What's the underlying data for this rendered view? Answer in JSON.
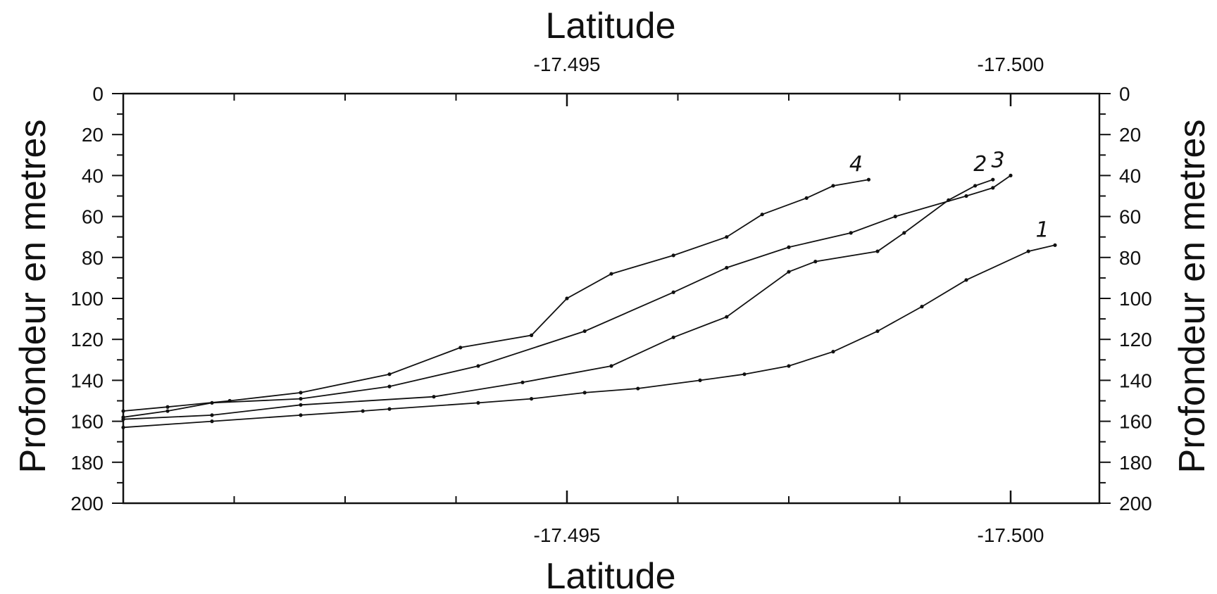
{
  "chart_data": {
    "type": "line",
    "xlabel_top": "Latitude",
    "xlabel_bottom": "Latitude",
    "ylabel_left": "Profondeur en metres",
    "ylabel_right": "Profondeur en metres",
    "xlim": [
      -17.49,
      -17.501
    ],
    "ylim": [
      0,
      200
    ],
    "y_inverted": true,
    "x_ticks": [
      -17.495,
      -17.5
    ],
    "x_tick_labels": [
      "-17.495",
      "-17.500"
    ],
    "y_ticks": [
      0,
      20,
      40,
      60,
      80,
      100,
      120,
      140,
      160,
      180,
      200
    ],
    "y_tick_labels": [
      "0",
      "20",
      "40",
      "60",
      "80",
      "100",
      "120",
      "140",
      "160",
      "180",
      "200"
    ],
    "grid": false,
    "series": [
      {
        "name": "1",
        "x": [
          -17.49,
          -17.491,
          -17.492,
          -17.4927,
          -17.493,
          -17.494,
          -17.4946,
          -17.4952,
          -17.4958,
          -17.4965,
          -17.497,
          -17.4975,
          -17.498,
          -17.4985,
          -17.499,
          -17.4995,
          -17.5002,
          -17.5005
        ],
        "y": [
          163,
          160,
          157,
          155,
          154,
          151,
          149,
          146,
          144,
          140,
          137,
          133,
          126,
          116,
          104,
          91,
          77,
          74
        ]
      },
      {
        "name": "2",
        "x": [
          -17.49,
          -17.491,
          -17.492,
          -17.4935,
          -17.4945,
          -17.4955,
          -17.4962,
          -17.4968,
          -17.4975,
          -17.4978,
          -17.4985,
          -17.4988,
          -17.4993,
          -17.4996,
          -17.4998
        ],
        "y": [
          159,
          157,
          152,
          148,
          141,
          133,
          119,
          109,
          87,
          82,
          77,
          68,
          52,
          45,
          42
        ]
      },
      {
        "name": "3",
        "x": [
          -17.49,
          -17.4905,
          -17.491,
          -17.492,
          -17.493,
          -17.494,
          -17.4952,
          -17.4962,
          -17.4968,
          -17.4975,
          -17.4982,
          -17.4987,
          -17.4995,
          -17.4998,
          -17.5
        ],
        "y": [
          158,
          155,
          151,
          149,
          143,
          133,
          116,
          97,
          85,
          75,
          68,
          60,
          50,
          46,
          40
        ]
      },
      {
        "name": "4",
        "x": [
          -17.49,
          -17.4905,
          -17.4912,
          -17.492,
          -17.493,
          -17.4938,
          -17.4946,
          -17.495,
          -17.4955,
          -17.4962,
          -17.4968,
          -17.4972,
          -17.4977,
          -17.498,
          -17.4984
        ],
        "y": [
          155,
          153,
          150,
          146,
          137,
          124,
          118,
          100,
          88,
          79,
          70,
          59,
          51,
          45,
          42
        ]
      }
    ]
  }
}
